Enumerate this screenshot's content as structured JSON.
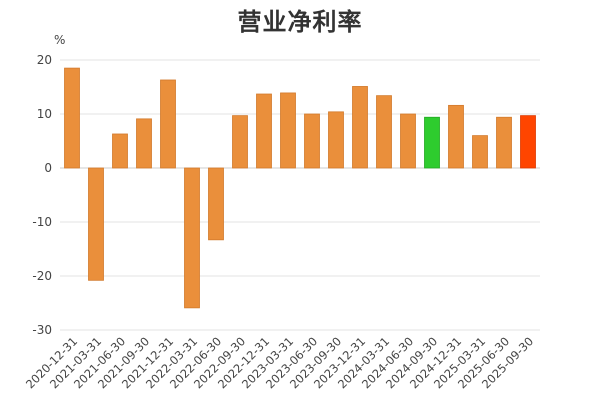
{
  "chart_data": {
    "type": "bar",
    "title": "营业净利率",
    "y_unit": "%",
    "categories": [
      "2020-12-31",
      "2021-03-31",
      "2021-06-30",
      "2021-09-30",
      "2021-12-31",
      "2022-03-31",
      "2022-06-30",
      "2022-09-30",
      "2022-12-31",
      "2023-03-31",
      "2023-06-30",
      "2023-09-30",
      "2023-12-31",
      "2024-03-31",
      "2024-06-30",
      "2024-09-30",
      "2024-12-31",
      "2025-03-31",
      "2025-06-30",
      "2025-09-30"
    ],
    "values": [
      18.5,
      -20.8,
      6.3,
      9.1,
      16.3,
      -25.9,
      -13.3,
      9.7,
      13.7,
      13.9,
      10.0,
      10.4,
      15.1,
      13.4,
      10.0,
      9.4,
      11.6,
      6.0,
      9.4,
      9.7
    ],
    "colors": [
      "#ea8f3b",
      "#ea8f3b",
      "#ea8f3b",
      "#ea8f3b",
      "#ea8f3b",
      "#ea8f3b",
      "#ea8f3b",
      "#ea8f3b",
      "#ea8f3b",
      "#ea8f3b",
      "#ea8f3b",
      "#ea8f3b",
      "#ea8f3b",
      "#ea8f3b",
      "#ea8f3b",
      "#2ecc2e",
      "#ea8f3b",
      "#ea8f3b",
      "#ea8f3b",
      "#ff4500"
    ],
    "ylim": [
      -30,
      20
    ],
    "yticks": [
      20,
      10,
      0,
      -10,
      -20,
      -30
    ],
    "ytick_labels": [
      "20",
      "10",
      "0",
      "-10",
      "-20",
      "-30"
    ],
    "grid": true
  }
}
